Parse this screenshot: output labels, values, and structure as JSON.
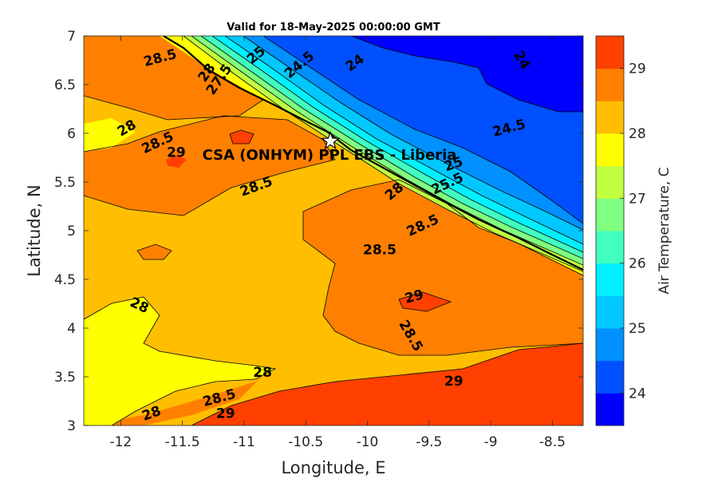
{
  "title": "Valid for 18-May-2025 00:00:00 GMT",
  "xlabel": "Longitude, E",
  "ylabel": "Latitude, N",
  "colorbar_label": "Air Temperature, C",
  "station_label": "CSA (ONHYM) PPL EBS  - Liberia",
  "map": {
    "xlim": [
      -12.3,
      -8.25
    ],
    "ylim": [
      3,
      7
    ],
    "x_ticks": [
      -12,
      -11.5,
      -11,
      -10.5,
      -10,
      -9.5,
      -9,
      -8.5
    ],
    "x_tick_labels": [
      "-12",
      "-11.5",
      "-11",
      "-10.5",
      "-10",
      "-9.5",
      "-9",
      "-8.5"
    ],
    "y_ticks": [
      3,
      3.5,
      4,
      4.5,
      5,
      5.5,
      6,
      6.5,
      7
    ],
    "y_tick_labels": [
      "3",
      "3.5",
      "4",
      "4.5",
      "5",
      "5.5",
      "6",
      "6.5",
      "7"
    ],
    "station": {
      "lon": -10.3,
      "lat": 5.92
    }
  },
  "colorbar": {
    "range": [
      23.5,
      29.5
    ],
    "ticks": [
      24,
      25,
      26,
      27,
      28,
      29
    ],
    "tick_labels": [
      "24",
      "25",
      "26",
      "27",
      "28",
      "29"
    ],
    "levels": [
      {
        "from": 23.5,
        "to": 24.0,
        "color": "#0000ff"
      },
      {
        "from": 24.0,
        "to": 24.5,
        "color": "#0050ff"
      },
      {
        "from": 24.5,
        "to": 25.0,
        "color": "#0090ff"
      },
      {
        "from": 25.0,
        "to": 25.5,
        "color": "#00c8ff"
      },
      {
        "from": 25.5,
        "to": 26.0,
        "color": "#00f0ff"
      },
      {
        "from": 26.0,
        "to": 26.5,
        "color": "#40ffc0"
      },
      {
        "from": 26.5,
        "to": 27.0,
        "color": "#80ff80"
      },
      {
        "from": 27.0,
        "to": 27.5,
        "color": "#c0ff40"
      },
      {
        "from": 27.5,
        "to": 28.0,
        "color": "#ffff00"
      },
      {
        "from": 28.0,
        "to": 28.5,
        "color": "#ffbf00"
      },
      {
        "from": 28.5,
        "to": 29.0,
        "color": "#ff8000"
      },
      {
        "from": 29.0,
        "to": 29.5,
        "color": "#ff4000"
      }
    ]
  },
  "contour_labels": [
    {
      "text": "28.5",
      "lon": -11.68,
      "lat": 6.77,
      "rotate": -15
    },
    {
      "text": "28",
      "lon": -11.95,
      "lat": 6.05,
      "rotate": -30
    },
    {
      "text": "28.5",
      "lon": -11.7,
      "lat": 5.9,
      "rotate": -25
    },
    {
      "text": "28.5",
      "lon": -10.9,
      "lat": 5.45,
      "rotate": -20
    },
    {
      "text": "29",
      "lon": -11.55,
      "lat": 5.8,
      "rotate": 0
    },
    {
      "text": "28",
      "lon": -11.3,
      "lat": 6.62,
      "rotate": -55
    },
    {
      "text": "27.5",
      "lon": -11.2,
      "lat": 6.55,
      "rotate": -55
    },
    {
      "text": "25",
      "lon": -10.9,
      "lat": 6.8,
      "rotate": -40
    },
    {
      "text": "24.5",
      "lon": -10.55,
      "lat": 6.7,
      "rotate": -40
    },
    {
      "text": "24",
      "lon": -10.1,
      "lat": 6.72,
      "rotate": -35
    },
    {
      "text": "24",
      "lon": -8.75,
      "lat": 6.75,
      "rotate": 60
    },
    {
      "text": "24.5",
      "lon": -8.85,
      "lat": 6.05,
      "rotate": -15
    },
    {
      "text": "25",
      "lon": -9.3,
      "lat": 5.68,
      "rotate": -20
    },
    {
      "text": "25.5",
      "lon": -9.35,
      "lat": 5.48,
      "rotate": -25
    },
    {
      "text": "28",
      "lon": -9.78,
      "lat": 5.4,
      "rotate": -40
    },
    {
      "text": "28.5",
      "lon": -9.55,
      "lat": 5.05,
      "rotate": -25
    },
    {
      "text": "28.5",
      "lon": -9.9,
      "lat": 4.8,
      "rotate": 0
    },
    {
      "text": "29",
      "lon": -9.62,
      "lat": 4.32,
      "rotate": -15
    },
    {
      "text": "28.5",
      "lon": -9.65,
      "lat": 3.92,
      "rotate": 60
    },
    {
      "text": "29",
      "lon": -9.3,
      "lat": 3.45,
      "rotate": 0
    },
    {
      "text": "28",
      "lon": -11.85,
      "lat": 4.23,
      "rotate": 25
    },
    {
      "text": "28",
      "lon": -10.85,
      "lat": 3.54,
      "rotate": 0
    },
    {
      "text": "28.5",
      "lon": -11.2,
      "lat": 3.28,
      "rotate": -15
    },
    {
      "text": "28",
      "lon": -11.75,
      "lat": 3.12,
      "rotate": -20
    },
    {
      "text": "29",
      "lon": -11.15,
      "lat": 3.12,
      "rotate": 0
    }
  ]
}
